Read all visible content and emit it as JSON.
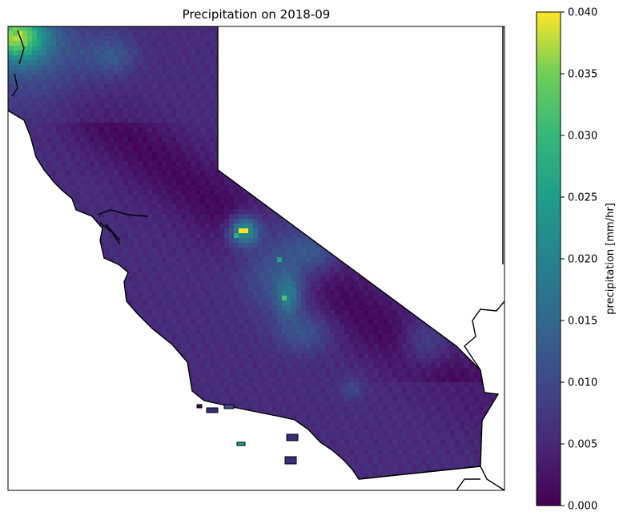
{
  "chart_data": {
    "type": "heatmap",
    "title": "Precipitation on 2018-09",
    "colorbar": {
      "label": "precipitation [mm/hr]",
      "range": [
        0.0,
        0.04
      ],
      "ticks": [
        "0.000",
        "0.005",
        "0.010",
        "0.015",
        "0.020",
        "0.025",
        "0.030",
        "0.035",
        "0.040"
      ],
      "colormap": "viridis"
    },
    "map": {
      "region": "California",
      "grid": false,
      "hotspots": [
        {
          "area": "north coast (top-left corner)",
          "value": 0.033
        },
        {
          "area": "central Sierra Nevada peak",
          "value": 0.04
        },
        {
          "area": "Sierra Nevada ridge",
          "value": 0.025
        },
        {
          "area": "southern Sierra",
          "value": 0.03
        },
        {
          "area": "Mojave region",
          "value": 0.014
        },
        {
          "area": "Central Valley (minimum)",
          "value": 0.001
        }
      ]
    }
  }
}
